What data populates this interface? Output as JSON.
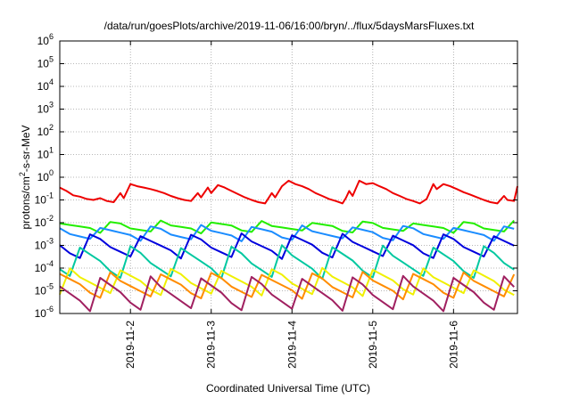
{
  "chart_data": {
    "type": "line",
    "title": "/data/run/goesPlots/archive/2019-11-06/16:00/bryn/../flux/5daysMarsFluxes.txt",
    "xlabel": "Coordinated Universal Time (UTC)",
    "ylabel_main": "protons/cm",
    "ylabel_sup": "2",
    "ylabel_rest": "-s-sr-MeV",
    "x_range": [
      "2019-11-01T03:00",
      "2019-11-06T19:00"
    ],
    "x_ticks": [
      "2019-11-2",
      "2019-11-3",
      "2019-11-4",
      "2019-11-5",
      "2019-11-6"
    ],
    "y_scale": "log",
    "ylim": [
      1e-06,
      1000000.0
    ],
    "y_ticks": [
      {
        "base": "10",
        "exp": "-6"
      },
      {
        "base": "10",
        "exp": "-5"
      },
      {
        "base": "10",
        "exp": "-4"
      },
      {
        "base": "10",
        "exp": "-3"
      },
      {
        "base": "10",
        "exp": "-2"
      },
      {
        "base": "10",
        "exp": "-1"
      },
      {
        "base": "10",
        "exp": "0"
      },
      {
        "base": "10",
        "exp": "1"
      },
      {
        "base": "10",
        "exp": "2"
      },
      {
        "base": "10",
        "exp": "3"
      },
      {
        "base": "10",
        "exp": "4"
      },
      {
        "base": "10",
        "exp": "5"
      },
      {
        "base": "10",
        "exp": "6"
      }
    ],
    "grid": true,
    "series": [
      {
        "color": "#ee0000",
        "points": [
          [
            "2019-11-01T03:00",
            0.35
          ],
          [
            "2019-11-01T05:00",
            0.25
          ],
          [
            "2019-11-01T07:00",
            0.16
          ],
          [
            "2019-11-01T09:00",
            0.14
          ],
          [
            "2019-11-01T11:00",
            0.11
          ],
          [
            "2019-11-01T13:00",
            0.1
          ],
          [
            "2019-11-01T15:00",
            0.12
          ],
          [
            "2019-11-01T17:00",
            0.09
          ],
          [
            "2019-11-01T19:00",
            0.08
          ],
          [
            "2019-11-01T21:00",
            0.2
          ],
          [
            "2019-11-01T22:00",
            0.12
          ],
          [
            "2019-11-02T00:00",
            0.5
          ],
          [
            "2019-11-02T02:00",
            0.4
          ],
          [
            "2019-11-02T04:00",
            0.35
          ],
          [
            "2019-11-02T06:00",
            0.3
          ],
          [
            "2019-11-02T08:00",
            0.25
          ],
          [
            "2019-11-02T10:00",
            0.2
          ],
          [
            "2019-11-02T12:00",
            0.15
          ],
          [
            "2019-11-02T14:00",
            0.12
          ],
          [
            "2019-11-02T16:00",
            0.1
          ],
          [
            "2019-11-02T18:00",
            0.09
          ],
          [
            "2019-11-02T20:00",
            0.2
          ],
          [
            "2019-11-02T21:00",
            0.13
          ],
          [
            "2019-11-02T23:00",
            0.35
          ],
          [
            "2019-11-03T00:00",
            0.2
          ],
          [
            "2019-11-03T02:00",
            0.45
          ],
          [
            "2019-11-03T04:00",
            0.35
          ],
          [
            "2019-11-03T06:00",
            0.25
          ],
          [
            "2019-11-03T08:00",
            0.18
          ],
          [
            "2019-11-03T10:00",
            0.13
          ],
          [
            "2019-11-03T12:00",
            0.1
          ],
          [
            "2019-11-03T14:00",
            0.08
          ],
          [
            "2019-11-03T16:00",
            0.07
          ],
          [
            "2019-11-03T18:00",
            0.2
          ],
          [
            "2019-11-03T19:00",
            0.13
          ],
          [
            "2019-11-03T21:00",
            0.4
          ],
          [
            "2019-11-03T23:00",
            0.7
          ],
          [
            "2019-11-04T01:00",
            0.5
          ],
          [
            "2019-11-04T03:00",
            0.4
          ],
          [
            "2019-11-04T05:00",
            0.3
          ],
          [
            "2019-11-04T07:00",
            0.2
          ],
          [
            "2019-11-04T09:00",
            0.15
          ],
          [
            "2019-11-04T11:00",
            0.11
          ],
          [
            "2019-11-04T13:00",
            0.09
          ],
          [
            "2019-11-04T15:00",
            0.07
          ],
          [
            "2019-11-04T16:00",
            0.12
          ],
          [
            "2019-11-04T17:00",
            0.25
          ],
          [
            "2019-11-04T18:00",
            0.15
          ],
          [
            "2019-11-04T20:00",
            0.7
          ],
          [
            "2019-11-04T22:00",
            0.5
          ],
          [
            "2019-11-05T00:00",
            0.55
          ],
          [
            "2019-11-05T02:00",
            0.4
          ],
          [
            "2019-11-05T04:00",
            0.3
          ],
          [
            "2019-11-05T06:00",
            0.2
          ],
          [
            "2019-11-05T08:00",
            0.15
          ],
          [
            "2019-11-05T10:00",
            0.11
          ],
          [
            "2019-11-05T12:00",
            0.09
          ],
          [
            "2019-11-05T14:00",
            0.07
          ],
          [
            "2019-11-05T16:00",
            0.11
          ],
          [
            "2019-11-05T18:00",
            0.5
          ],
          [
            "2019-11-05T19:00",
            0.3
          ],
          [
            "2019-11-05T21:00",
            0.5
          ],
          [
            "2019-11-05T23:00",
            0.4
          ],
          [
            "2019-11-06T01:00",
            0.3
          ],
          [
            "2019-11-06T03:00",
            0.22
          ],
          [
            "2019-11-06T05:00",
            0.17
          ],
          [
            "2019-11-06T07:00",
            0.13
          ],
          [
            "2019-11-06T09:00",
            0.1
          ],
          [
            "2019-11-06T11:00",
            0.08
          ],
          [
            "2019-11-06T13:00",
            0.07
          ],
          [
            "2019-11-06T15:00",
            0.15
          ],
          [
            "2019-11-06T16:00",
            0.1
          ],
          [
            "2019-11-06T18:00",
            0.09
          ],
          [
            "2019-11-06T19:00",
            0.4
          ]
        ]
      },
      {
        "color": "#22ee00",
        "points": "generated"
      },
      {
        "color": "#1a8cff",
        "points": "generated"
      },
      {
        "color": "#0000dd",
        "points": "generated"
      },
      {
        "color": "#00c8a0",
        "points": "generated"
      },
      {
        "color": "#f0f000",
        "points": "generated"
      },
      {
        "color": "#ff8c00",
        "points": "generated"
      },
      {
        "color": "#a02060",
        "points": "generated"
      }
    ],
    "sawtooth_bands": [
      {
        "color": "#22ee00",
        "high": 0.011,
        "low": 0.004
      },
      {
        "color": "#1a8cff",
        "high": 0.007,
        "low": 0.0018
      },
      {
        "color": "#0000dd",
        "high": 0.003,
        "low": 0.0003
      },
      {
        "color": "#00c8a0",
        "high": 0.0009,
        "low": 4e-05
      },
      {
        "color": "#f0f000",
        "high": 9e-05,
        "low": 7e-06
      },
      {
        "color": "#ff8c00",
        "high": 6e-05,
        "low": 5e-06
      },
      {
        "color": "#a02060",
        "high": 4e-05,
        "low": 1.5e-06
      }
    ]
  }
}
